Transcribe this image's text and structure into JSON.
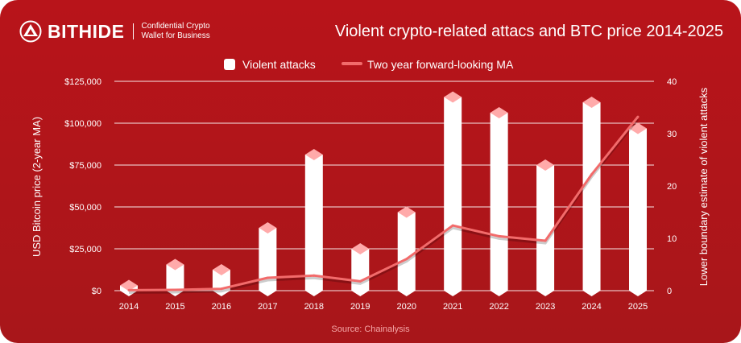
{
  "brand": {
    "name": "BITHIDE",
    "tagline_line1": "Confidential Crypto",
    "tagline_line2": "Wallet for Business"
  },
  "colors": {
    "background": "#b5161b",
    "bar": "#ffffff",
    "bar_top": "#ffaaaa",
    "line": "#f26b6b"
  },
  "chart_data": {
    "type": "bar+line",
    "title": "Violent crypto-related attacs and BTC price 2014-2025",
    "categories": [
      "2014",
      "2015",
      "2016",
      "2017",
      "2018",
      "2019",
      "2020",
      "2021",
      "2022",
      "2023",
      "2024",
      "2025"
    ],
    "series": [
      {
        "name": "Violent attacks",
        "type": "bar",
        "axis": "right",
        "values": [
          1,
          5,
          4,
          12,
          26,
          8,
          15,
          37,
          34,
          24,
          36,
          31
        ]
      },
      {
        "name": "Two year forward-looking MA",
        "type": "line",
        "axis": "left",
        "values": [
          300,
          500,
          1100,
          7700,
          9000,
          5600,
          18900,
          38900,
          32500,
          29800,
          69400,
          103800
        ]
      }
    ],
    "ylabel_left": "USD Bitcoin price (2-year MA)",
    "ylabel_right": "Lower boundary estimate of violent attacks",
    "ylim_left": [
      0,
      125000
    ],
    "ylim_right": [
      0,
      40
    ],
    "left_ticks": [
      "$0",
      "$25,000",
      "$50,000",
      "$75,000",
      "$100,000",
      "$125,000"
    ],
    "right_ticks": [
      "0",
      "10",
      "20",
      "30",
      "40"
    ],
    "legend_placement": "top-center",
    "grid": true,
    "source": "Source: Chainalysis"
  }
}
